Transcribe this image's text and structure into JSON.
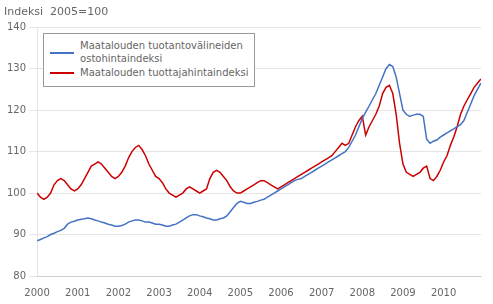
{
  "chart_data": {
    "type": "line",
    "title": "Indeksi  2005=100",
    "x": [
      2000.0,
      2000.083,
      2000.167,
      2000.25,
      2000.333,
      2000.417,
      2000.5,
      2000.583,
      2000.667,
      2000.75,
      2000.833,
      2000.917,
      2001.0,
      2001.083,
      2001.167,
      2001.25,
      2001.333,
      2001.417,
      2001.5,
      2001.583,
      2001.667,
      2001.75,
      2001.833,
      2001.917,
      2002.0,
      2002.083,
      2002.167,
      2002.25,
      2002.333,
      2002.417,
      2002.5,
      2002.583,
      2002.667,
      2002.75,
      2002.833,
      2002.917,
      2003.0,
      2003.083,
      2003.167,
      2003.25,
      2003.333,
      2003.417,
      2003.5,
      2003.583,
      2003.667,
      2003.75,
      2003.833,
      2003.917,
      2004.0,
      2004.083,
      2004.167,
      2004.25,
      2004.333,
      2004.417,
      2004.5,
      2004.583,
      2004.667,
      2004.75,
      2004.833,
      2004.917,
      2005.0,
      2005.083,
      2005.167,
      2005.25,
      2005.333,
      2005.417,
      2005.5,
      2005.583,
      2005.667,
      2005.75,
      2005.833,
      2005.917,
      2006.0,
      2006.083,
      2006.167,
      2006.25,
      2006.333,
      2006.417,
      2006.5,
      2006.583,
      2006.667,
      2006.75,
      2006.833,
      2006.917,
      2007.0,
      2007.083,
      2007.167,
      2007.25,
      2007.333,
      2007.417,
      2007.5,
      2007.583,
      2007.667,
      2007.75,
      2007.833,
      2007.917,
      2008.0,
      2008.083,
      2008.167,
      2008.25,
      2008.333,
      2008.417,
      2008.5,
      2008.583,
      2008.667,
      2008.75,
      2008.833,
      2008.917,
      2009.0,
      2009.083,
      2009.167,
      2009.25,
      2009.333,
      2009.417,
      2009.5,
      2009.583,
      2009.667,
      2009.75,
      2009.833,
      2009.917,
      2010.0,
      2010.083,
      2010.167,
      2010.25,
      2010.333,
      2010.417,
      2010.5,
      2010.583,
      2010.667,
      2010.75,
      2010.833,
      2010.917
    ],
    "series": [
      {
        "name": "Maatalouden tuotantovälineiden\nostohintaindeksi",
        "color": "#4472C4",
        "values": [
          88.5,
          88.8,
          89.2,
          89.5,
          90.0,
          90.3,
          90.7,
          91.0,
          91.5,
          92.5,
          93.0,
          93.2,
          93.5,
          93.7,
          93.8,
          94.0,
          93.8,
          93.5,
          93.3,
          93.0,
          92.8,
          92.5,
          92.3,
          92.0,
          92.0,
          92.2,
          92.5,
          93.0,
          93.3,
          93.5,
          93.5,
          93.3,
          93.0,
          93.0,
          92.8,
          92.5,
          92.5,
          92.3,
          92.0,
          92.0,
          92.3,
          92.5,
          93.0,
          93.5,
          94.0,
          94.5,
          94.8,
          94.8,
          94.5,
          94.3,
          94.0,
          93.8,
          93.5,
          93.5,
          93.8,
          94.0,
          94.5,
          95.5,
          96.5,
          97.5,
          98.0,
          97.8,
          97.5,
          97.5,
          97.8,
          98.0,
          98.3,
          98.5,
          99.0,
          99.5,
          100.0,
          100.5,
          101.0,
          101.5,
          102.0,
          102.5,
          103.0,
          103.3,
          103.5,
          104.0,
          104.5,
          105.0,
          105.5,
          106.0,
          106.5,
          107.0,
          107.5,
          108.0,
          108.5,
          109.0,
          109.5,
          110.0,
          111.0,
          112.5,
          114.0,
          116.0,
          118.0,
          119.5,
          121.0,
          122.5,
          124.0,
          126.0,
          128.0,
          130.0,
          131.0,
          130.5,
          128.0,
          124.0,
          120.0,
          119.0,
          118.5,
          118.8,
          119.0,
          119.0,
          118.5,
          113.0,
          112.0,
          112.5,
          112.8,
          113.5,
          114.0,
          114.5,
          115.0,
          115.5,
          116.0,
          116.5,
          117.5,
          119.5,
          121.5,
          123.5,
          125.0,
          126.5
        ]
      },
      {
        "name": "Maatalouden tuottajahintaindeksi",
        "color": "#CC0000",
        "values": [
          100.0,
          99.0,
          98.5,
          99.0,
          100.0,
          102.0,
          103.0,
          103.5,
          103.0,
          102.0,
          101.0,
          100.5,
          101.0,
          102.0,
          103.5,
          105.0,
          106.5,
          107.0,
          107.5,
          107.0,
          106.0,
          105.0,
          104.0,
          103.5,
          104.0,
          105.0,
          106.5,
          108.5,
          110.0,
          111.0,
          111.5,
          110.5,
          109.0,
          107.0,
          105.5,
          104.0,
          103.5,
          102.5,
          101.0,
          100.0,
          99.5,
          99.0,
          99.5,
          100.0,
          101.0,
          101.5,
          101.0,
          100.5,
          100.0,
          100.5,
          101.0,
          103.5,
          105.0,
          105.5,
          105.0,
          104.0,
          103.0,
          101.5,
          100.5,
          100.0,
          100.0,
          100.5,
          101.0,
          101.5,
          102.0,
          102.5,
          103.0,
          103.0,
          102.5,
          102.0,
          101.5,
          101.0,
          101.5,
          102.0,
          102.5,
          103.0,
          103.5,
          104.0,
          104.5,
          105.0,
          105.5,
          106.0,
          106.5,
          107.0,
          107.5,
          108.0,
          108.5,
          109.0,
          110.0,
          111.0,
          112.0,
          111.5,
          112.0,
          114.0,
          116.0,
          117.5,
          118.5,
          114.0,
          116.0,
          117.5,
          119.0,
          121.0,
          124.0,
          125.5,
          126.0,
          124.0,
          119.0,
          112.0,
          107.0,
          105.0,
          104.5,
          104.0,
          104.5,
          105.0,
          106.0,
          106.5,
          103.5,
          103.0,
          104.0,
          105.5,
          107.5,
          109.0,
          111.5,
          113.5,
          116.0,
          119.0,
          121.0,
          122.5,
          124.0,
          125.5,
          126.5,
          127.5
        ]
      }
    ],
    "xlim": [
      2000.0,
      2010.92
    ],
    "xticks": [
      2000,
      2001,
      2002,
      2003,
      2004,
      2005,
      2006,
      2007,
      2008,
      2009,
      2010
    ],
    "ylim": [
      80,
      140
    ],
    "yticks": [
      80,
      90,
      100,
      110,
      120,
      130,
      140
    ],
    "grid": "y",
    "legend": "upper left"
  }
}
